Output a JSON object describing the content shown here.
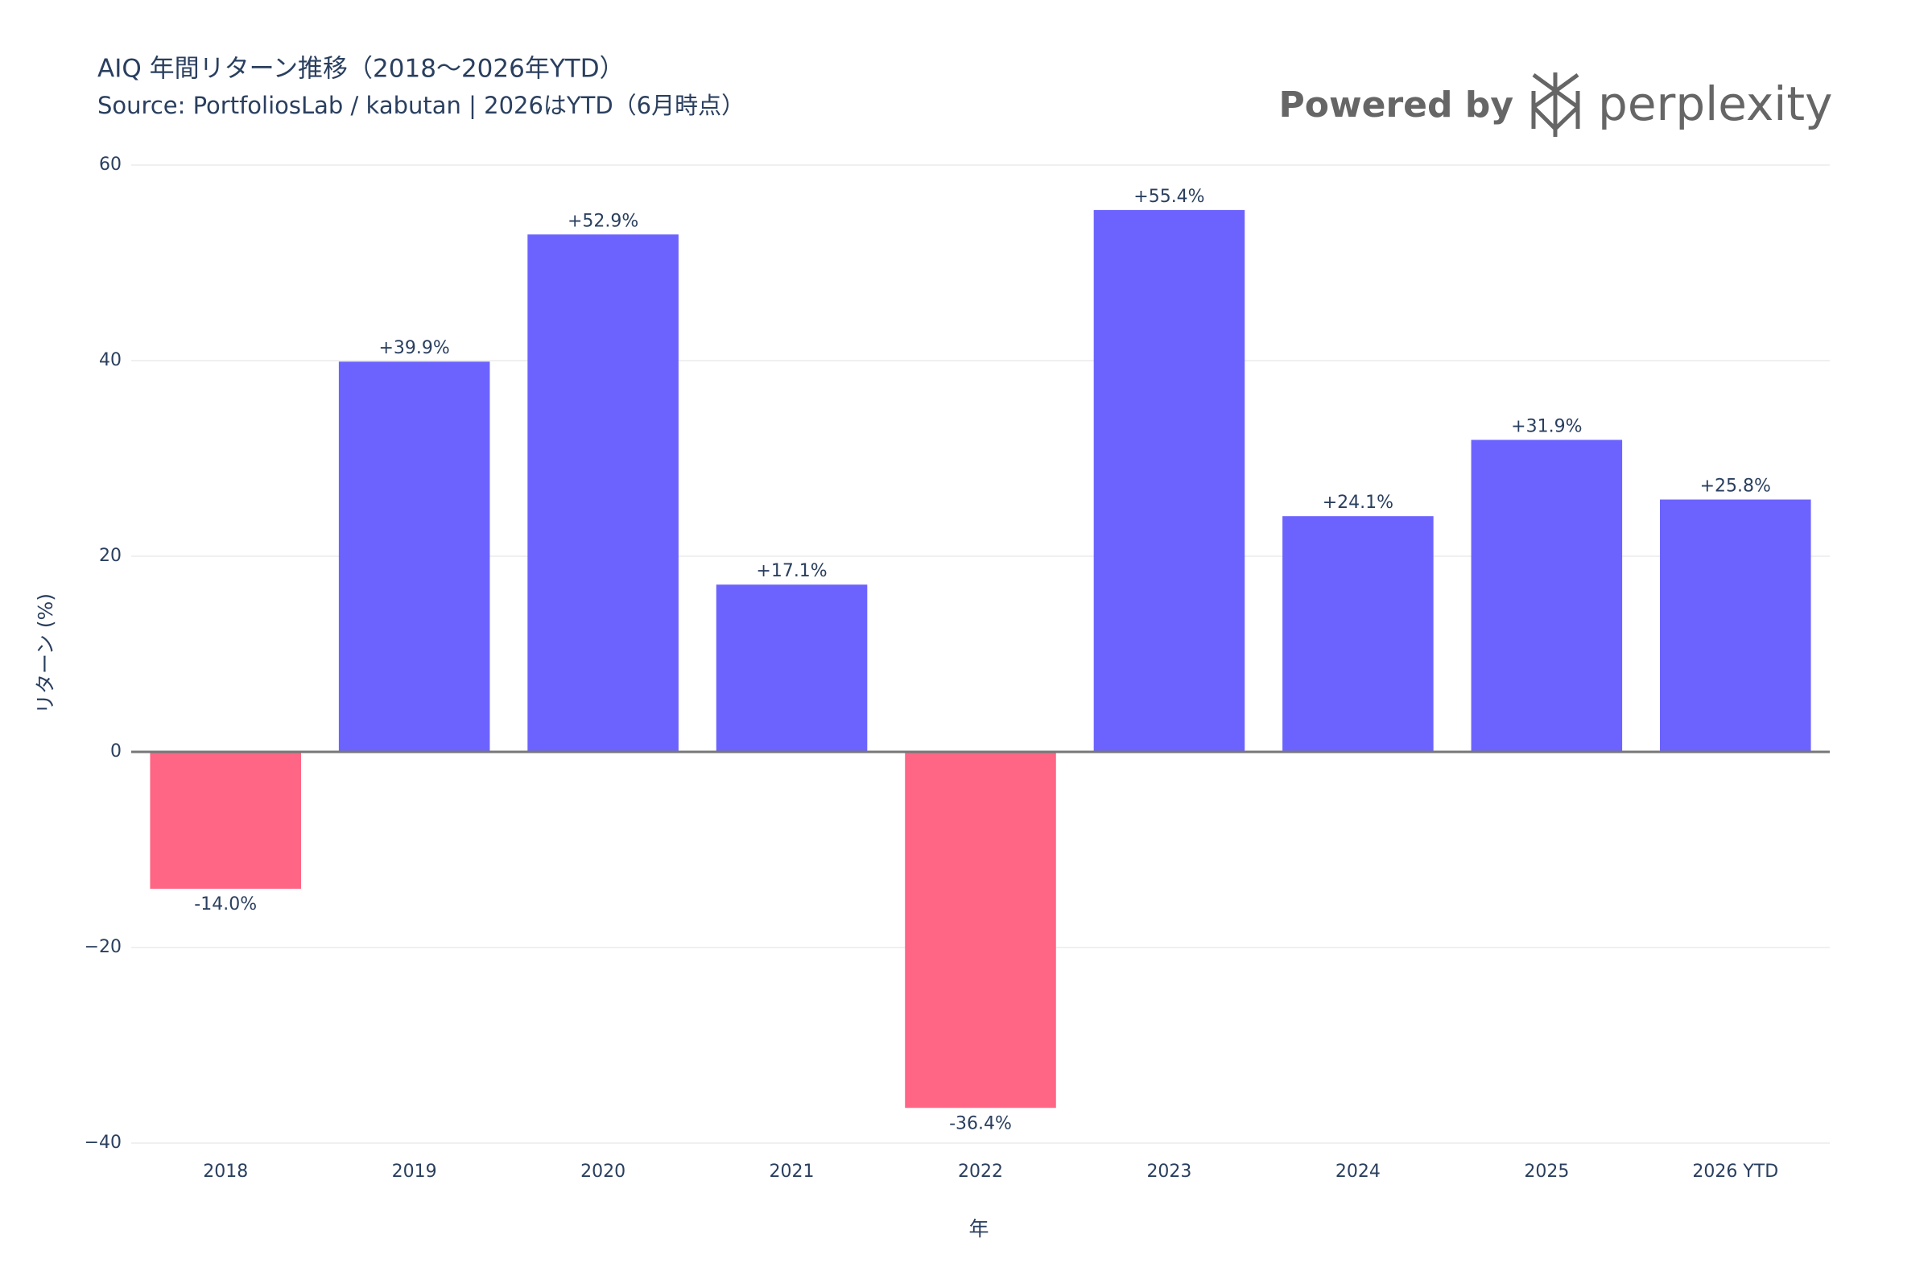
{
  "chart_data": {
    "type": "bar",
    "title": "AIQ 年間リターン推移（2018〜2026年YTD）",
    "subtitle": "Source: PortfoliosLab / kabutan | 2026はYTD（6月時点）",
    "x_label": "年",
    "y_label": "リターン (%)",
    "annotations": [
      "Powered by",
      "perplexity"
    ],
    "categories": [
      "2018",
      "2019",
      "2020",
      "2021",
      "2022",
      "2023",
      "2024",
      "2025",
      "2026 YTD"
    ],
    "values": [
      -14.0,
      39.9,
      52.9,
      17.1,
      -36.4,
      55.4,
      24.1,
      31.9,
      25.8
    ],
    "value_labels": [
      "-14.0%",
      "+39.9%",
      "+52.9%",
      "+17.1%",
      "-36.4%",
      "+55.4%",
      "+24.1%",
      "+31.9%",
      "+25.8%"
    ],
    "colors": [
      "#ff6584",
      "#6c63ff",
      "#6c63ff",
      "#6c63ff",
      "#ff6584",
      "#6c63ff",
      "#6c63ff",
      "#6c63ff",
      "#6c63ff"
    ],
    "ylim": [
      -40,
      60
    ],
    "yticks": [
      {
        "value": -40,
        "label": "−40"
      },
      {
        "value": -20,
        "label": "−20"
      },
      0,
      20,
      40,
      60
    ],
    "grid": true
  }
}
